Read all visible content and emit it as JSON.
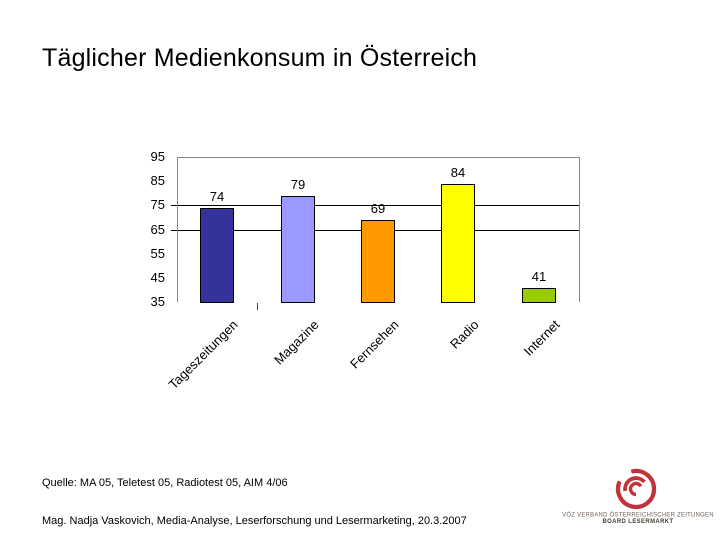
{
  "slide": {
    "title": "Täglicher Medienkonsum in Österreich",
    "source_line": "Quelle: MA 05, Teletest 05, Radiotest 05, AIM 4/06",
    "footer_line": "Mag. Nadja Vaskovich, Media-Analyse, Leserforschung und Lesermarketing, 20.3.2007"
  },
  "chart_data": {
    "type": "bar",
    "title": "",
    "categories": [
      "Tageszeitungen",
      "Magazine",
      "Fernsehen",
      "Radio",
      "Internet"
    ],
    "values": [
      74,
      79,
      69,
      84,
      41
    ],
    "bar_colors": [
      "#333399",
      "#9999FF",
      "#FF9900",
      "#FFFF00",
      "#99CC00"
    ],
    "bar_border_color": "#000000",
    "y_ticks": [
      95,
      85,
      75,
      65,
      55,
      45,
      35
    ],
    "ylim": [
      35,
      95
    ],
    "gridlines_at": [
      75,
      65
    ],
    "gridline_color": "#000000",
    "axis_color": "#888888",
    "data_labels": true,
    "legend": "none"
  },
  "logo": {
    "line1": "VÖZ VERBAND ÖSTERREICHISCHER ZEITUNGEN",
    "line2": "BOARD LESERMARKT",
    "color": "#C0343C"
  }
}
